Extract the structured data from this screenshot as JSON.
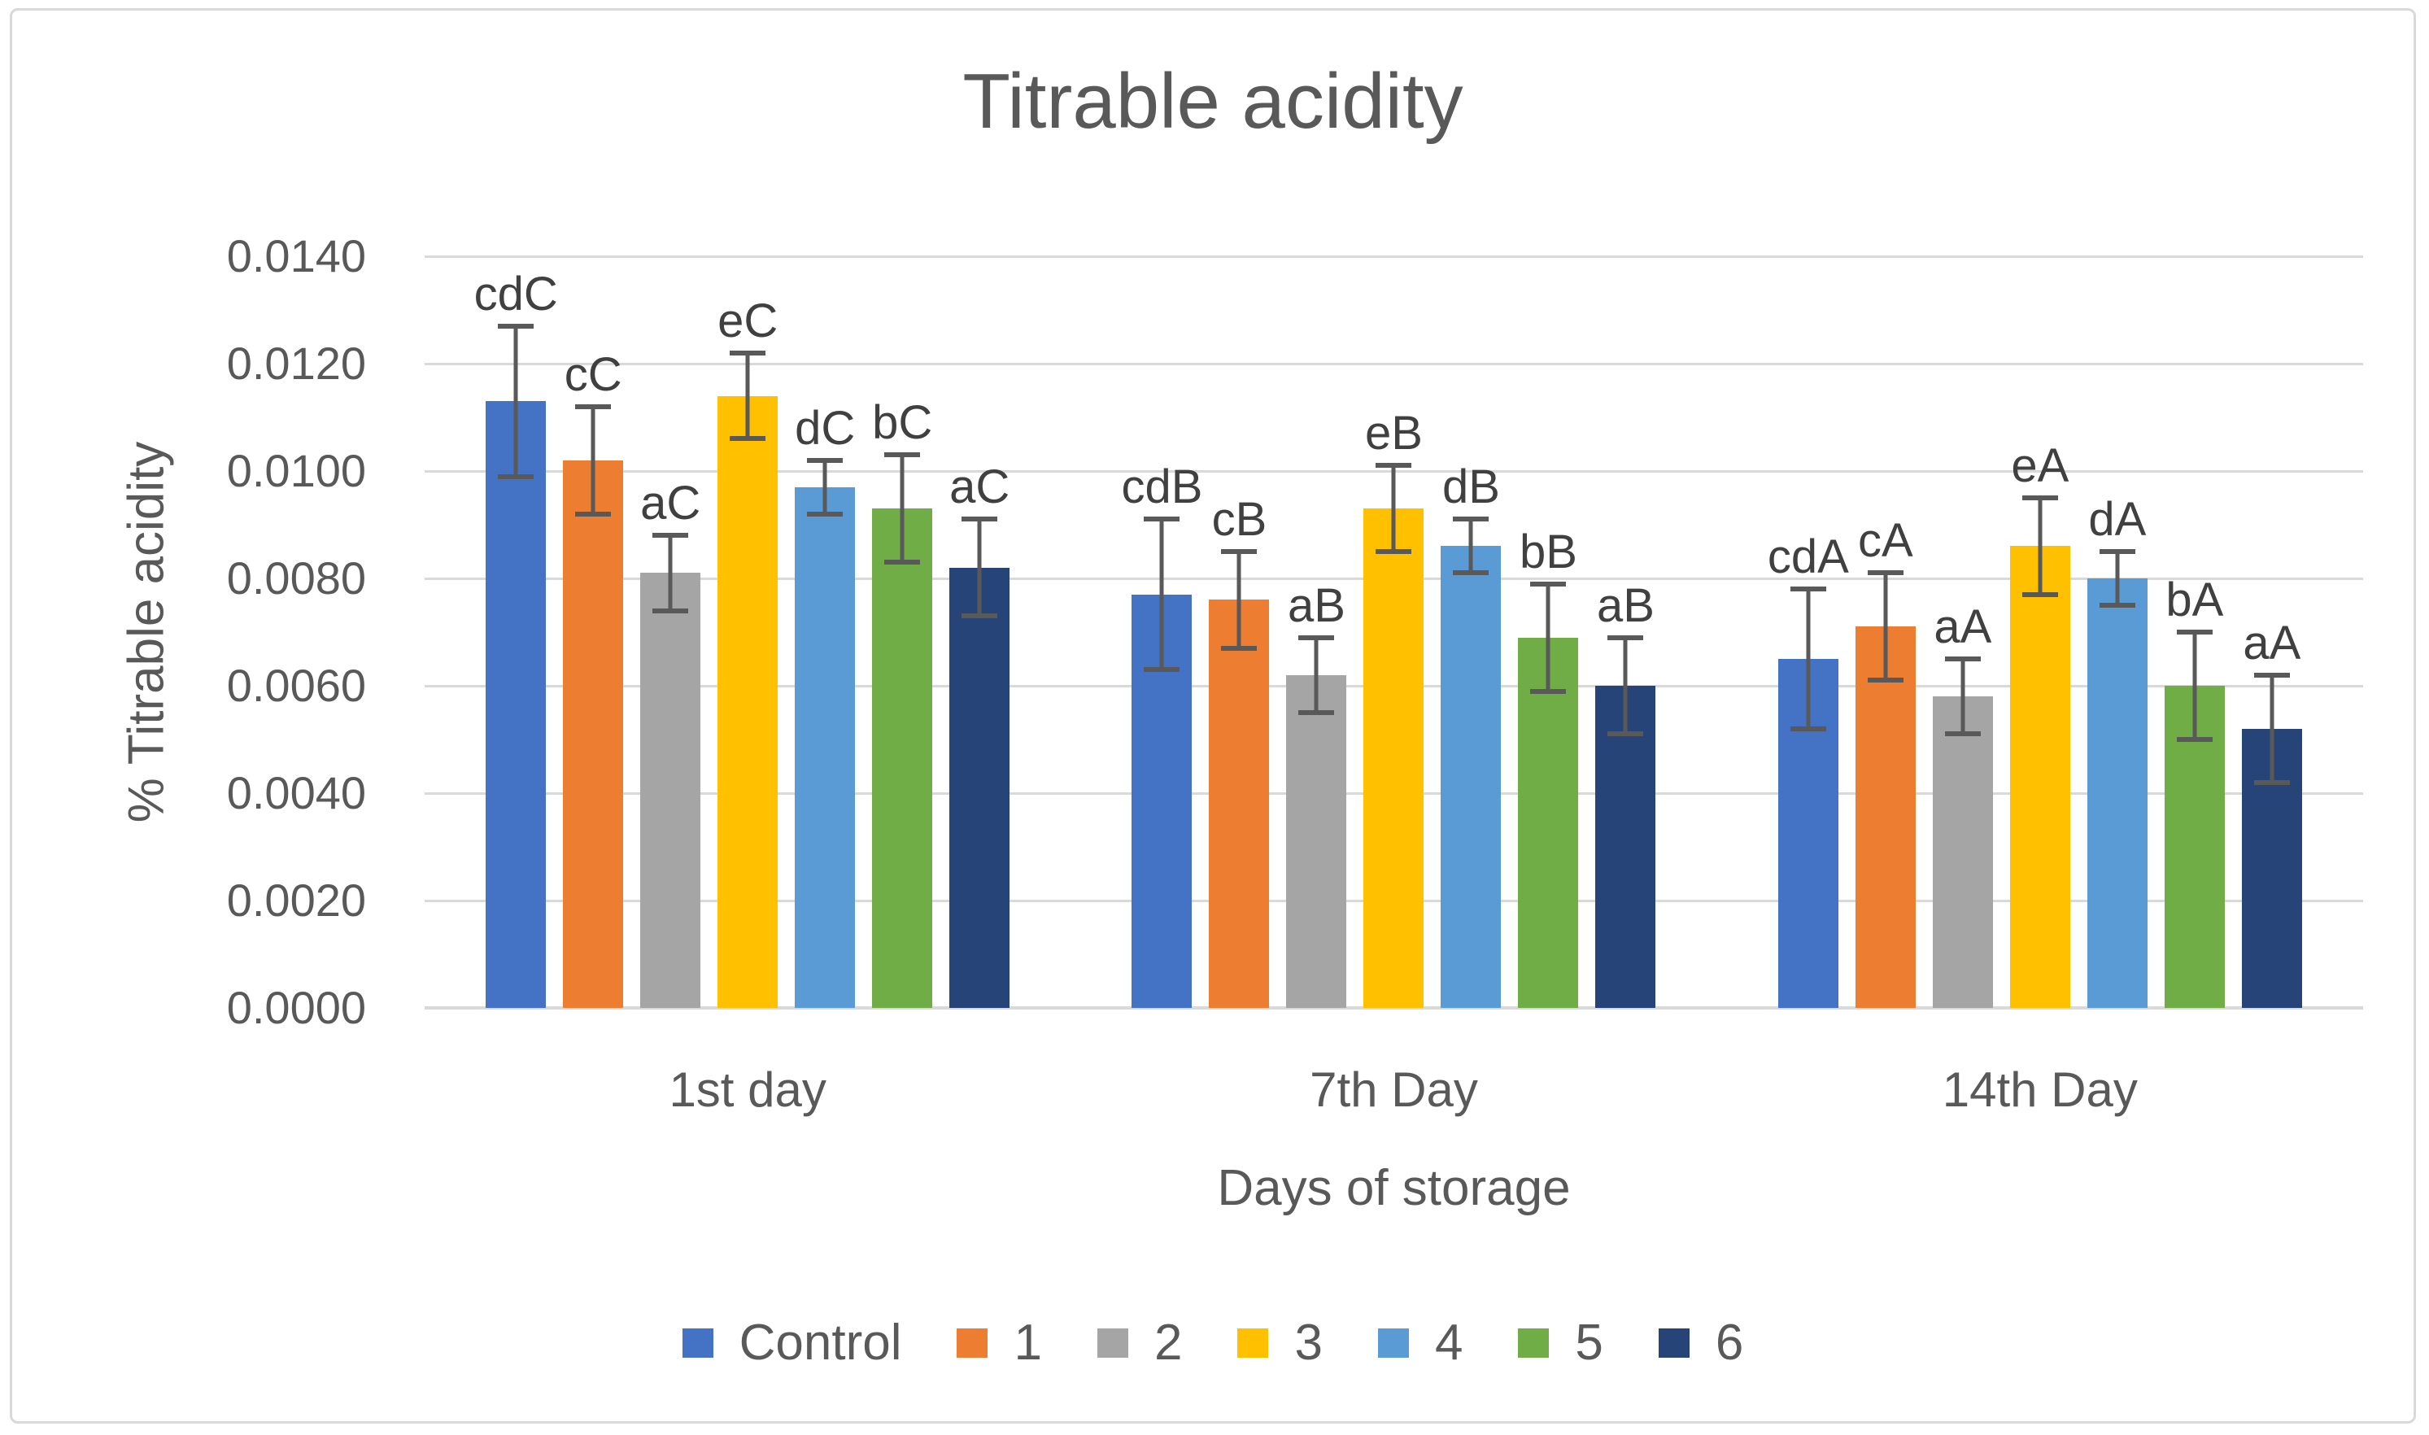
{
  "chart_data": {
    "type": "bar",
    "title": "Titrable acidity",
    "xlabel": "Days of storage",
    "ylabel": "% Titrable acidity",
    "categories": [
      "1st day",
      "7th Day",
      "14th Day"
    ],
    "ylim": [
      0,
      0.014
    ],
    "ytick_step": 0.002,
    "ytick_labels": [
      "0.0000",
      "0.0020",
      "0.0040",
      "0.0060",
      "0.0080",
      "0.0100",
      "0.0120",
      "0.0140"
    ],
    "grid": true,
    "legend_position": "bottom",
    "error_bars": true,
    "series": [
      {
        "name": "Control",
        "color": "#4472C4",
        "values": [
          0.0113,
          0.0077,
          0.0065
        ],
        "errors": [
          0.0014,
          0.0014,
          0.0013
        ],
        "point_labels": [
          "cdC",
          "cdB",
          "cdA"
        ]
      },
      {
        "name": "1",
        "color": "#ED7D31",
        "values": [
          0.0102,
          0.0076,
          0.0071
        ],
        "errors": [
          0.001,
          0.0009,
          0.001
        ],
        "point_labels": [
          "cC",
          "cB",
          "cA"
        ]
      },
      {
        "name": "2",
        "color": "#A5A5A5",
        "values": [
          0.0081,
          0.0062,
          0.0058
        ],
        "errors": [
          0.0007,
          0.0007,
          0.0007
        ],
        "point_labels": [
          "aC",
          "aB",
          "aA"
        ]
      },
      {
        "name": "3",
        "color": "#FFC000",
        "values": [
          0.0114,
          0.0093,
          0.0086
        ],
        "errors": [
          0.0008,
          0.0008,
          0.0009
        ],
        "point_labels": [
          "eC",
          "eB",
          "eA"
        ]
      },
      {
        "name": "4",
        "color": "#5B9BD5",
        "values": [
          0.0097,
          0.0086,
          0.008
        ],
        "errors": [
          0.0005,
          0.0005,
          0.0005
        ],
        "point_labels": [
          "dC",
          "dB",
          "dA"
        ]
      },
      {
        "name": "5",
        "color": "#70AD47",
        "values": [
          0.0093,
          0.0069,
          0.006
        ],
        "errors": [
          0.001,
          0.001,
          0.001
        ],
        "point_labels": [
          "bC",
          "bB",
          "bA"
        ]
      },
      {
        "name": "6",
        "color": "#264478",
        "values": [
          0.0082,
          0.006,
          0.0052
        ],
        "errors": [
          0.0009,
          0.0009,
          0.001
        ],
        "point_labels": [
          "aC",
          "aB",
          "aA"
        ]
      }
    ]
  },
  "colors": {
    "background": "#FFFFFF",
    "frame_border": "#D9D9D9",
    "gridline": "#D9D9D9",
    "axis_text": "#595959",
    "bar_label_text": "#404040",
    "error_bar": "#595959"
  }
}
